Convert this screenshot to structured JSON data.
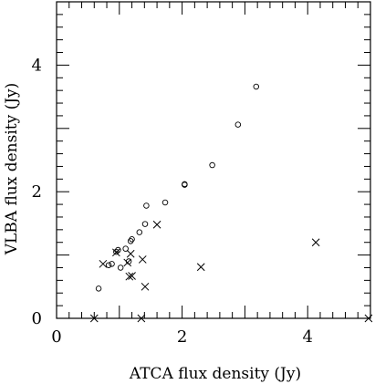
{
  "chart_data": {
    "type": "scatter",
    "title": "",
    "xlabel": "ATCA flux density (Jy)",
    "ylabel": "VLBA flux density (Jy)",
    "xlim": [
      0,
      5
    ],
    "ylim": [
      0,
      5
    ],
    "x_ticks": [
      {
        "value": 0,
        "label": "0"
      },
      {
        "value": 2,
        "label": "2"
      },
      {
        "value": 4,
        "label": "4"
      }
    ],
    "y_ticks": [
      {
        "value": 0,
        "label": "0"
      },
      {
        "value": 2,
        "label": "2"
      },
      {
        "value": 4,
        "label": "4"
      }
    ],
    "minor_tick_step": 0.2,
    "grid": false,
    "series": [
      {
        "marker": "circle",
        "points": [
          [
            0.67,
            0.47
          ],
          [
            0.83,
            0.84
          ],
          [
            0.88,
            0.86
          ],
          [
            0.95,
            1.05
          ],
          [
            0.98,
            1.08
          ],
          [
            1.02,
            0.8
          ],
          [
            1.1,
            1.1
          ],
          [
            1.15,
            0.9
          ],
          [
            1.18,
            1.22
          ],
          [
            1.2,
            1.25
          ],
          [
            1.32,
            1.36
          ],
          [
            1.41,
            1.49
          ],
          [
            1.43,
            1.78
          ],
          [
            1.73,
            1.83
          ],
          [
            2.04,
            2.12
          ],
          [
            2.04,
            2.11
          ],
          [
            2.48,
            2.42
          ],
          [
            2.89,
            3.06
          ],
          [
            3.18,
            3.66
          ]
        ]
      },
      {
        "marker": "cross",
        "points": [
          [
            0.6,
            0.0
          ],
          [
            0.74,
            0.86
          ],
          [
            0.95,
            1.04
          ],
          [
            1.13,
            0.88
          ],
          [
            1.16,
            0.66
          ],
          [
            1.18,
            1.02
          ],
          [
            1.2,
            0.67
          ],
          [
            1.35,
            0.0
          ],
          [
            1.37,
            0.93
          ],
          [
            1.41,
            0.5
          ],
          [
            1.6,
            1.48
          ],
          [
            2.3,
            0.81
          ],
          [
            4.13,
            1.2
          ],
          [
            4.97,
            0.0
          ]
        ]
      }
    ]
  }
}
